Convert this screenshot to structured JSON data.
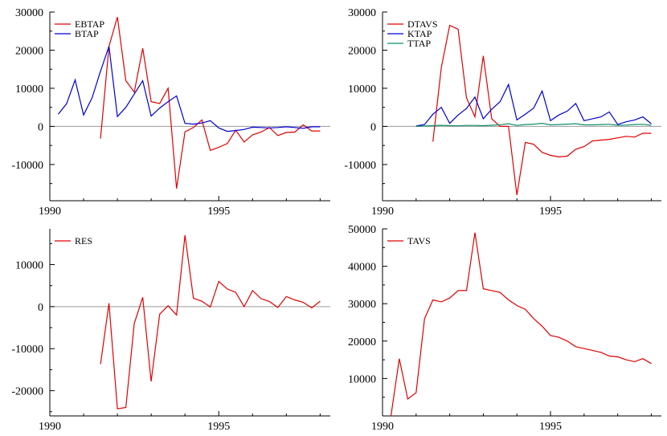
{
  "chart_data": [
    {
      "type": "line",
      "xlim": [
        1990,
        1998.3
      ],
      "ylim": [
        -19500,
        30000
      ],
      "x_ticks": [
        1990,
        1995
      ],
      "x_tick_labels": [
        "1990",
        "1995"
      ],
      "y_ticks": [
        30000,
        20000,
        10000,
        0,
        -10000
      ],
      "y_tick_labels": [
        "30000",
        "20000",
        "10000",
        "0",
        "-10000"
      ],
      "zero_line": true,
      "legend_position": "top-left",
      "series": [
        {
          "name": "EBTAP",
          "color": "#e00000",
          "x": [
            1991.5,
            1991.75,
            1992.0,
            1992.25,
            1992.5,
            1992.75,
            1993.0,
            1993.25,
            1993.5,
            1993.75,
            1994.0,
            1994.25,
            1994.5,
            1994.75,
            1995.0,
            1995.25,
            1995.5,
            1995.75,
            1996.0,
            1996.25,
            1996.5,
            1996.75,
            1997.0,
            1997.25,
            1997.5,
            1997.75,
            1998.0
          ],
          "y": [
            -3200,
            21000,
            28700,
            12000,
            9000,
            20500,
            6500,
            6000,
            10000,
            -16300,
            -1400,
            -300,
            1700,
            -6300,
            -5500,
            -4500,
            -1000,
            -4100,
            -2200,
            -1500,
            -300,
            -2400,
            -1600,
            -1500,
            400,
            -1200,
            -1200
          ]
        },
        {
          "name": "BTAP",
          "color": "#0000d8",
          "x": [
            1990.25,
            1990.5,
            1990.75,
            1991.0,
            1991.25,
            1991.5,
            1991.75,
            1992.0,
            1992.25,
            1992.5,
            1992.75,
            1993.0,
            1993.25,
            1993.5,
            1993.75,
            1994.0,
            1994.25,
            1994.5,
            1994.75,
            1995.0,
            1995.25,
            1995.5,
            1995.75,
            1996.0,
            1996.25,
            1996.5,
            1996.75,
            1997.0,
            1997.25,
            1997.5,
            1997.75,
            1998.0
          ],
          "y": [
            3200,
            6000,
            12200,
            3000,
            7500,
            14500,
            21000,
            2600,
            5000,
            8500,
            12000,
            2700,
            4800,
            6500,
            8000,
            800,
            600,
            900,
            1500,
            -400,
            -1300,
            -1100,
            -800,
            -200,
            -300,
            -400,
            -300,
            -100,
            -300,
            -500,
            -100,
            -100
          ]
        }
      ]
    },
    {
      "type": "line",
      "xlim": [
        1990,
        1998.3
      ],
      "ylim": [
        -19500,
        30000
      ],
      "x_ticks": [
        1990,
        1995
      ],
      "x_tick_labels": [
        "1990",
        "1995"
      ],
      "y_ticks": [
        30000,
        20000,
        10000,
        0,
        -10000
      ],
      "y_tick_labels": [
        "30000",
        "20000",
        "10000",
        "0",
        "-10000"
      ],
      "zero_line": true,
      "legend_position": "top-left",
      "series": [
        {
          "name": "DTAVS",
          "color": "#e00000",
          "x": [
            1991.5,
            1991.75,
            1992.0,
            1992.25,
            1992.5,
            1992.75,
            1993.0,
            1993.25,
            1993.5,
            1993.75,
            1994.0,
            1994.25,
            1994.5,
            1994.75,
            1995.0,
            1995.25,
            1995.5,
            1995.75,
            1996.0,
            1996.25,
            1996.5,
            1996.75,
            1997.0,
            1997.25,
            1997.5,
            1997.75,
            1998.0
          ],
          "y": [
            -4000,
            15500,
            26500,
            25500,
            7500,
            2500,
            18500,
            2000,
            0,
            0,
            -18000,
            -4200,
            -4700,
            -6800,
            -7600,
            -8000,
            -7800,
            -6000,
            -5300,
            -3800,
            -3600,
            -3400,
            -3000,
            -2600,
            -2800,
            -1800,
            -1800
          ]
        },
        {
          "name": "KTAP",
          "color": "#0000d8",
          "x": [
            1991.0,
            1991.25,
            1991.5,
            1991.75,
            1992.0,
            1992.25,
            1992.5,
            1992.75,
            1993.0,
            1993.25,
            1993.5,
            1993.75,
            1994.0,
            1994.25,
            1994.5,
            1994.75,
            1995.0,
            1995.25,
            1995.5,
            1995.75,
            1996.0,
            1996.25,
            1996.5,
            1996.75,
            1997.0,
            1997.25,
            1997.5,
            1997.75,
            1998.0
          ],
          "y": [
            100,
            500,
            3200,
            5000,
            800,
            3000,
            4700,
            7700,
            2000,
            4500,
            6500,
            11000,
            1700,
            3200,
            4800,
            9300,
            1500,
            3000,
            4000,
            6000,
            1500,
            2000,
            2500,
            3800,
            500,
            1200,
            1700,
            2500,
            700
          ]
        },
        {
          "name": "TTAP",
          "color": "#0f8f6a",
          "x": [
            1991.0,
            1991.25,
            1991.5,
            1991.75,
            1992.0,
            1992.25,
            1992.5,
            1992.75,
            1993.0,
            1993.25,
            1993.5,
            1993.75,
            1994.0,
            1994.25,
            1994.5,
            1994.75,
            1995.0,
            1995.25,
            1995.5,
            1995.75,
            1996.0,
            1996.25,
            1996.5,
            1996.75,
            1997.0,
            1997.25,
            1997.5,
            1997.75,
            1998.0
          ],
          "y": [
            0,
            100,
            200,
            300,
            200,
            150,
            250,
            250,
            200,
            300,
            450,
            700,
            250,
            500,
            600,
            800,
            400,
            500,
            600,
            700,
            400,
            400,
            500,
            550,
            300,
            350,
            500,
            550,
            300
          ]
        }
      ]
    },
    {
      "type": "line",
      "xlim": [
        1990,
        1998.3
      ],
      "ylim": [
        -26000,
        18500
      ],
      "x_ticks": [
        1990,
        1995
      ],
      "x_tick_labels": [
        "1990",
        "1995"
      ],
      "y_ticks": [
        10000,
        0,
        -10000,
        -20000
      ],
      "y_tick_labels": [
        "10000",
        "0",
        "-10000",
        "-20000"
      ],
      "zero_line": true,
      "legend_position": "top-left",
      "series": [
        {
          "name": "RES",
          "color": "#e00000",
          "x": [
            1991.5,
            1991.75,
            1992.0,
            1992.25,
            1992.5,
            1992.75,
            1993.0,
            1993.25,
            1993.5,
            1993.75,
            1994.0,
            1994.25,
            1994.5,
            1994.75,
            1995.0,
            1995.25,
            1995.5,
            1995.75,
            1996.0,
            1996.25,
            1996.5,
            1996.75,
            1997.0,
            1997.25,
            1997.5,
            1997.75,
            1998.0
          ],
          "y": [
            -13700,
            800,
            -24300,
            -24000,
            -4000,
            2200,
            -17800,
            -1800,
            200,
            -2000,
            17000,
            2000,
            1300,
            -100,
            6000,
            4200,
            3400,
            0,
            3800,
            1900,
            1200,
            -200,
            2400,
            1600,
            1000,
            -300,
            1300
          ]
        }
      ]
    },
    {
      "type": "line",
      "xlim": [
        1990,
        1998.3
      ],
      "ylim": [
        0,
        50000
      ],
      "x_ticks": [
        1990,
        1995
      ],
      "x_tick_labels": [
        "1990",
        "1995"
      ],
      "y_ticks": [
        50000,
        40000,
        30000,
        20000,
        10000
      ],
      "y_tick_labels": [
        "50000",
        "40000",
        "30000",
        "20000",
        "10000"
      ],
      "zero_line": false,
      "legend_position": "top-left",
      "series": [
        {
          "name": "TAVS",
          "color": "#e00000",
          "x": [
            1990.25,
            1990.5,
            1990.75,
            1991.0,
            1991.25,
            1991.5,
            1991.75,
            1992.0,
            1992.25,
            1992.5,
            1992.75,
            1993.0,
            1993.25,
            1993.5,
            1993.75,
            1994.0,
            1994.25,
            1994.5,
            1994.75,
            1995.0,
            1995.25,
            1995.5,
            1995.75,
            1996.0,
            1996.25,
            1996.5,
            1996.75,
            1997.0,
            1997.25,
            1997.5,
            1997.75,
            1998.0
          ],
          "y": [
            0,
            15300,
            4500,
            6200,
            26000,
            31000,
            30500,
            31500,
            33500,
            33500,
            49000,
            34000,
            33500,
            33000,
            31000,
            29500,
            28500,
            26000,
            24000,
            21500,
            21000,
            20000,
            18500,
            18000,
            17500,
            17000,
            16000,
            15800,
            15000,
            14500,
            15300,
            14000
          ]
        }
      ]
    }
  ]
}
